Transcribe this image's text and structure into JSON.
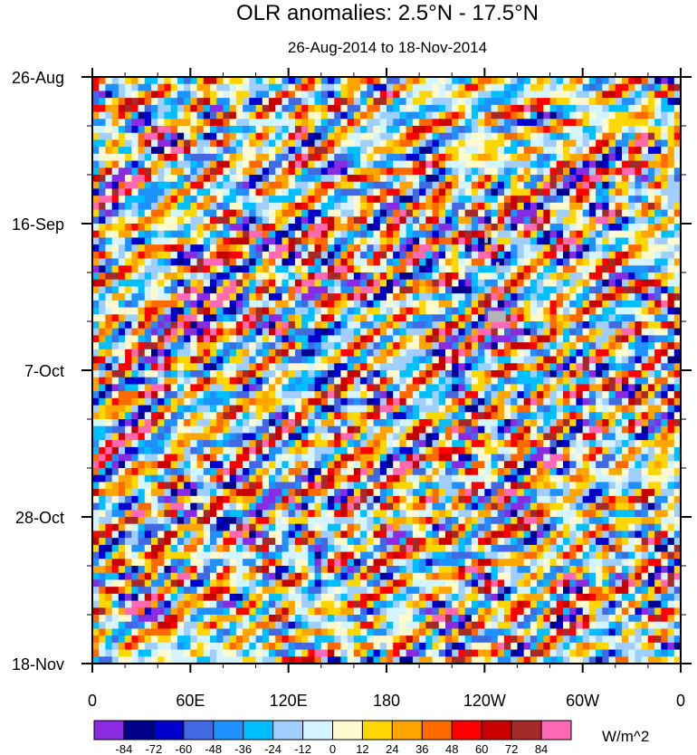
{
  "chart_data": {
    "type": "heatmap",
    "title": "OLR anomalies: 2.5°N - 17.5°N",
    "subtitle": "26-Aug-2014 to 18-Nov-2014",
    "x_tick_labels": [
      "0",
      "60E",
      "120E",
      "180",
      "120W",
      "60W",
      "0"
    ],
    "x_tick_lon": [
      0,
      60,
      120,
      180,
      240,
      300,
      360
    ],
    "xlim": [
      0,
      360
    ],
    "y_tick_labels": [
      "26-Aug",
      "16-Sep",
      "7-Oct",
      "28-Oct",
      "18-Nov"
    ],
    "y_tick_day": [
      0,
      21,
      42,
      63,
      84
    ],
    "ylim": [
      0,
      84
    ],
    "colorbar": {
      "units": "W/m^2",
      "levels": [
        -84,
        -72,
        -60,
        -48,
        -36,
        -24,
        -12,
        0,
        12,
        24,
        36,
        48,
        60,
        72,
        84
      ],
      "level_labels": [
        "-84",
        "-72",
        "-60",
        "-48",
        "-36",
        "-24",
        "-12",
        "0",
        "12",
        "24",
        "36",
        "48",
        "60",
        "72",
        "84"
      ],
      "colors": [
        "#8a2be2",
        "#00008b",
        "#0000cd",
        "#4169e1",
        "#1e90ff",
        "#00bfff",
        "#a0cfff",
        "#d4f4ff",
        "#fffacd",
        "#ffd700",
        "#ffa500",
        "#ff6a00",
        "#ff0000",
        "#c80000",
        "#a52a2a",
        "#ff69b4"
      ]
    },
    "missing_color": "#b4b4b4"
  }
}
